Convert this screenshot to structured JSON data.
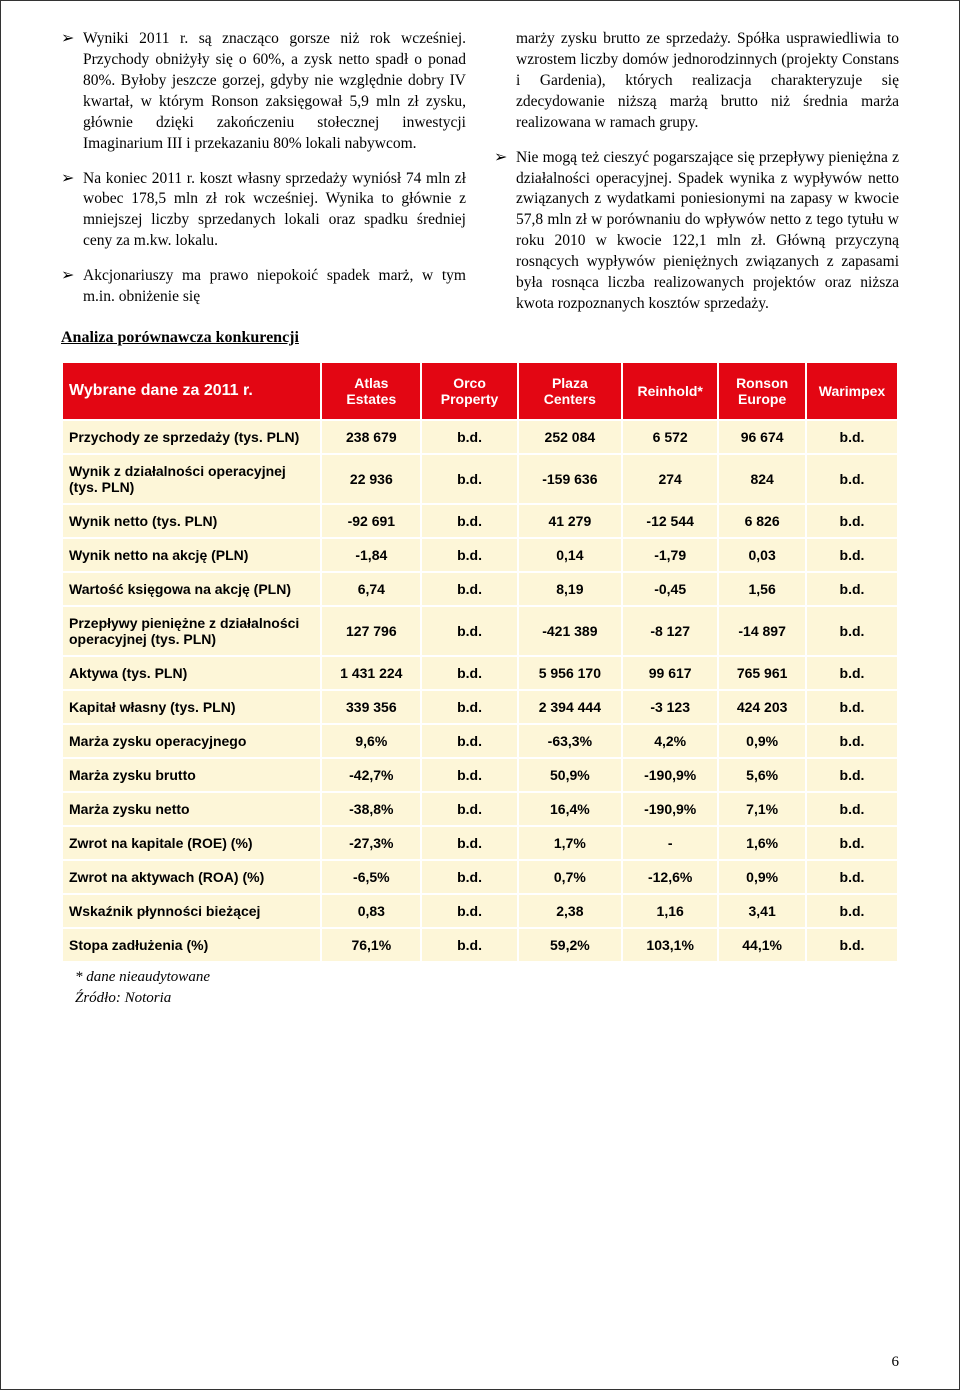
{
  "colors": {
    "header_bg": "#e30613",
    "header_text": "#ffffff",
    "row_bg": "#fdf6d8",
    "border": "#ffffff",
    "page_border": "#333333"
  },
  "left_bullets": [
    "Wyniki 2011 r. są znacząco gorsze niż rok wcześniej. Przychody obniżyły się o 60%, a zysk netto spadł o ponad 80%. Byłoby jeszcze gorzej, gdyby nie względnie dobry IV kwartał, w którym Ronson zaksięgował 5,9 mln zł zysku, głównie dzięki zakończeniu stołecznej inwestycji Imaginarium III i przekazaniu 80% lokali nabywcom.",
    "Na koniec 2011 r. koszt własny sprzedaży wyniósł 74 mln zł wobec 178,5 mln zł rok wcześniej. Wynika to głównie z mniejszej liczby sprzedanych lokali oraz spadku średniej ceny za m.kw. lokalu.",
    "Akcjonariuszy ma prawo niepokoić spadek marż, w tym m.in. obniżenie się"
  ],
  "right_bullets_cont": "marży zysku brutto ze sprzedaży. Spółka usprawiedliwia to wzrostem liczby domów jednorodzinnych (projekty Constans i Gardenia), których realizacja charakteryzuje się zdecydowanie niższą marżą brutto niż średnia marża realizowana w ramach grupy.",
  "right_bullets": [
    "Nie mogą też cieszyć pogarszające się przepływy pieniężna z działalności operacyjnej. Spadek wynika z wypływów netto związanych z wydatkami poniesionymi na zapasy w kwocie 57,8 mln zł w porównaniu do wpływów netto z tego tytułu w roku 2010 w kwocie 122,1 mln zł. Główną przyczyną rosnących wypływów pieniężnych związanych z zapasami była rosnąca liczba realizowanych projektów oraz niższa kwota rozpoznanych kosztów sprzedaży."
  ],
  "section_title": "Analiza porównawcza konkurencji",
  "table": {
    "header_title": "Wybrane dane za 2011 r.",
    "columns": [
      "Atlas Estates",
      "Orco Property",
      "Plaza Centers",
      "Reinhold*",
      "Ronson Europe",
      "Warimpex"
    ],
    "col_widths": [
      "31%",
      "12%",
      "11.5%",
      "12.5%",
      "11.5%",
      "10.5%",
      "11%"
    ],
    "rows": [
      {
        "label": "Przychody ze sprzedaży (tys. PLN)",
        "cells": [
          "238 679",
          "b.d.",
          "252 084",
          "6 572",
          "96 674",
          "b.d."
        ]
      },
      {
        "label": "Wynik z działalności operacyjnej (tys. PLN)",
        "cells": [
          "22 936",
          "b.d.",
          "-159 636",
          "274",
          "824",
          "b.d."
        ]
      },
      {
        "label": "Wynik netto (tys. PLN)",
        "cells": [
          "-92 691",
          "b.d.",
          "41 279",
          "-12 544",
          "6 826",
          "b.d."
        ]
      },
      {
        "label": "Wynik netto na akcję (PLN)",
        "cells": [
          "-1,84",
          "b.d.",
          "0,14",
          "-1,79",
          "0,03",
          "b.d."
        ]
      },
      {
        "label": "Wartość księgowa na akcję (PLN)",
        "cells": [
          "6,74",
          "b.d.",
          "8,19",
          "-0,45",
          "1,56",
          "b.d."
        ]
      },
      {
        "label": "Przepływy pieniężne z działalności operacyjnej (tys. PLN)",
        "cells": [
          "127 796",
          "b.d.",
          "-421 389",
          "-8 127",
          "-14 897",
          "b.d."
        ]
      },
      {
        "label": "Aktywa (tys. PLN)",
        "cells": [
          "1 431 224",
          "b.d.",
          "5 956 170",
          "99 617",
          "765 961",
          "b.d."
        ]
      },
      {
        "label": "Kapitał własny (tys. PLN)",
        "cells": [
          "339 356",
          "b.d.",
          "2 394 444",
          "-3 123",
          "424 203",
          "b.d."
        ]
      },
      {
        "label": "Marża zysku operacyjnego",
        "cells": [
          "9,6%",
          "b.d.",
          "-63,3%",
          "4,2%",
          "0,9%",
          "b.d."
        ]
      },
      {
        "label": "Marża zysku brutto",
        "cells": [
          "-42,7%",
          "b.d.",
          "50,9%",
          "-190,9%",
          "5,6%",
          "b.d."
        ]
      },
      {
        "label": "Marża zysku netto",
        "cells": [
          "-38,8%",
          "b.d.",
          "16,4%",
          "-190,9%",
          "7,1%",
          "b.d."
        ]
      },
      {
        "label": "Zwrot na kapitale (ROE) (%)",
        "cells": [
          "-27,3%",
          "b.d.",
          "1,7%",
          "-",
          "1,6%",
          "b.d."
        ]
      },
      {
        "label": "Zwrot na aktywach (ROA) (%)",
        "cells": [
          "-6,5%",
          "b.d.",
          "0,7%",
          "-12,6%",
          "0,9%",
          "b.d."
        ]
      },
      {
        "label": "Wskaźnik płynności bieżącej",
        "cells": [
          "0,83",
          "b.d.",
          "2,38",
          "1,16",
          "3,41",
          "b.d."
        ]
      },
      {
        "label": "Stopa zadłużenia (%)",
        "cells": [
          "76,1%",
          "b.d.",
          "59,2%",
          "103,1%",
          "44,1%",
          "b.d."
        ]
      }
    ]
  },
  "footnote1": "* dane nieaudytowane",
  "footnote2": "Źródło: Notoria",
  "page_number": "6"
}
